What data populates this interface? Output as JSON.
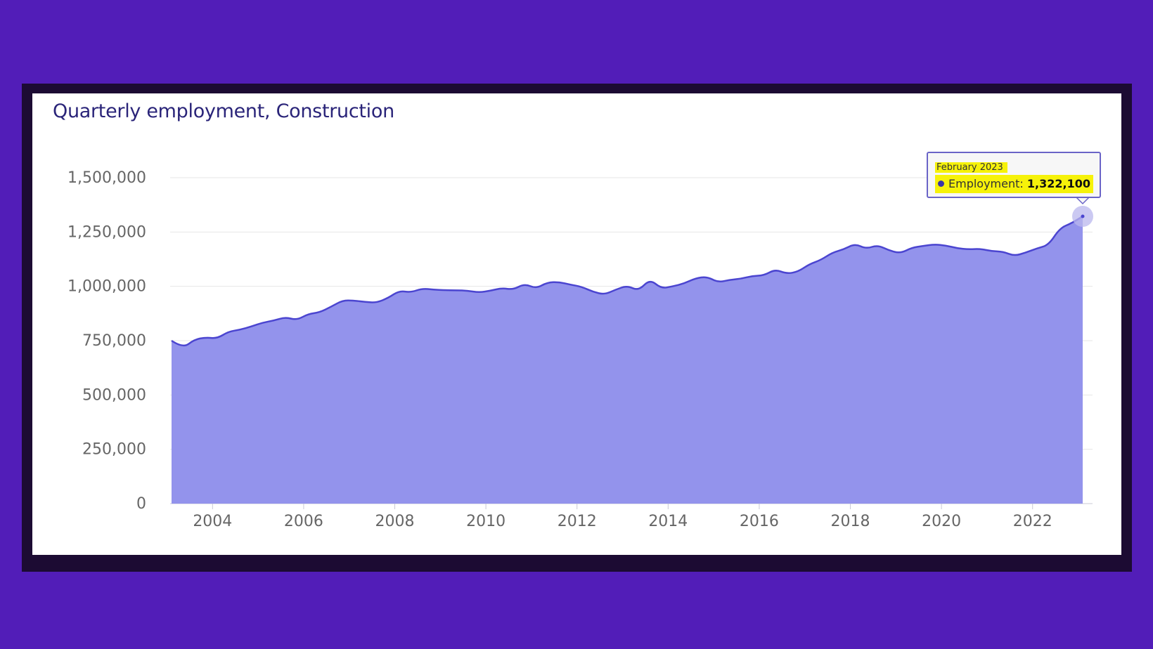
{
  "colors": {
    "background": "#521db8",
    "frame": "#1c0b33",
    "card": "#ffffff",
    "title": "#2a2479",
    "series_fill": "#9393ec",
    "series_line": "#4b45d0",
    "highlight": "#f6f20a"
  },
  "tooltip": {
    "date": "February 2023",
    "series_label": "Employment:",
    "value": "1,322,100"
  },
  "chart_data": {
    "type": "area",
    "title": "Quarterly employment, Construction",
    "xlabel": "",
    "ylabel": "",
    "xlim": [
      2003.1,
      2023.1
    ],
    "ylim": [
      0,
      1500000
    ],
    "yticks": [
      0,
      250000,
      500000,
      750000,
      1000000,
      1250000,
      1500000
    ],
    "ytick_labels": [
      "0",
      "250,000",
      "500,000",
      "750,000",
      "1,000,000",
      "1,250,000",
      "1,500,000"
    ],
    "xticks": [
      2004,
      2006,
      2008,
      2010,
      2012,
      2014,
      2016,
      2018,
      2020,
      2022
    ],
    "xtick_labels": [
      "2004",
      "2006",
      "2008",
      "2010",
      "2012",
      "2014",
      "2016",
      "2018",
      "2020",
      "2022"
    ],
    "grid": "horizontal",
    "legend": "none",
    "series": [
      {
        "x": [
          2003.1,
          2003.35,
          2003.6,
          2003.85,
          2004.1,
          2004.35,
          2004.6,
          2004.85,
          2005.1,
          2005.35,
          2005.6,
          2005.85,
          2006.1,
          2006.35,
          2006.6,
          2006.85,
          2007.1,
          2007.35,
          2007.6,
          2007.85,
          2008.1,
          2008.35,
          2008.6,
          2008.85,
          2009.1,
          2009.35,
          2009.6,
          2009.85,
          2010.1,
          2010.35,
          2010.6,
          2010.85,
          2011.1,
          2011.35,
          2011.6,
          2011.85,
          2012.1,
          2012.35,
          2012.6,
          2012.85,
          2013.1,
          2013.35,
          2013.6,
          2013.85,
          2014.1,
          2014.35,
          2014.6,
          2014.85,
          2015.1,
          2015.35,
          2015.6,
          2015.85,
          2016.1,
          2016.35,
          2016.6,
          2016.85,
          2017.1,
          2017.35,
          2017.6,
          2017.85,
          2018.1,
          2018.35,
          2018.6,
          2018.85,
          2019.1,
          2019.35,
          2019.6,
          2019.85,
          2020.1,
          2020.35,
          2020.6,
          2020.85,
          2021.1,
          2021.35,
          2021.6,
          2021.85,
          2022.1,
          2022.35,
          2022.6,
          2022.85,
          2023.1
        ],
        "values": [
          750000,
          715000,
          755000,
          765000,
          760000,
          792000,
          800000,
          815000,
          833000,
          843000,
          858000,
          845000,
          873000,
          880000,
          906000,
          935000,
          935000,
          928000,
          925000,
          946000,
          980000,
          972000,
          990000,
          985000,
          982000,
          982000,
          980000,
          972000,
          980000,
          992000,
          985000,
          1012000,
          990000,
          1018000,
          1020000,
          1008000,
          998000,
          975000,
          962000,
          985000,
          1003000,
          980000,
          1033000,
          990000,
          1000000,
          1013000,
          1037000,
          1045000,
          1018000,
          1030000,
          1035000,
          1048000,
          1050000,
          1078000,
          1058000,
          1067000,
          1102000,
          1121000,
          1155000,
          1170000,
          1196000,
          1173000,
          1190000,
          1165000,
          1152000,
          1178000,
          1186000,
          1193000,
          1188000,
          1175000,
          1170000,
          1173000,
          1162000,
          1160000,
          1140000,
          1155000,
          1175000,
          1190000,
          1268000,
          1290000,
          1322100
        ]
      }
    ]
  }
}
